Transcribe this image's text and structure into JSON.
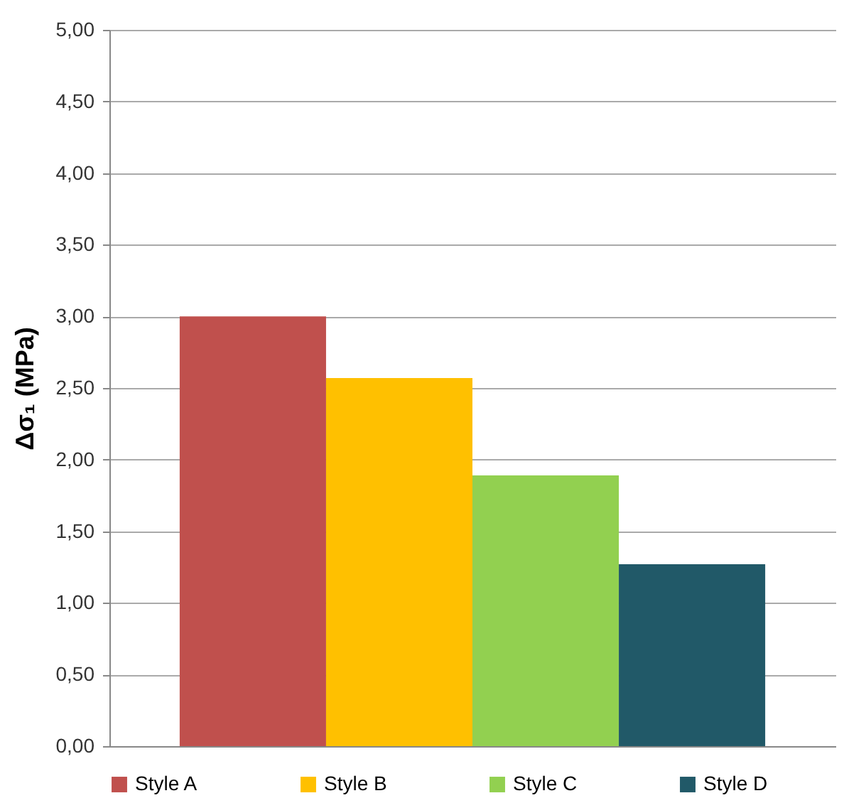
{
  "chart_data": {
    "type": "bar",
    "ylabel": "Δσ₁ (MPa)",
    "categories": [
      null
    ],
    "series": [
      {
        "name": "Style A",
        "color": "#c0504d",
        "values": [
          3.0
        ]
      },
      {
        "name": "Style B",
        "color": "#ffc000",
        "values": [
          2.57
        ]
      },
      {
        "name": "Style C",
        "color": "#92d050",
        "values": [
          1.89
        ]
      },
      {
        "name": "Style D",
        "color": "#215968",
        "values": [
          1.27
        ]
      }
    ],
    "ylim": [
      0,
      5
    ],
    "yticks": [
      {
        "value": 0,
        "label": "0,00"
      },
      {
        "value": 0.5,
        "label": "0,50"
      },
      {
        "value": 1,
        "label": "1,00"
      },
      {
        "value": 1.5,
        "label": "1,50"
      },
      {
        "value": 2,
        "label": "2,00"
      },
      {
        "value": 2.5,
        "label": "2,50"
      },
      {
        "value": 3,
        "label": "3,00"
      },
      {
        "value": 3.5,
        "label": "3,50"
      },
      {
        "value": 4,
        "label": "4,00"
      },
      {
        "value": 4.5,
        "label": "4,50"
      },
      {
        "value": 5,
        "label": "5,00"
      }
    ],
    "grid": "y",
    "legend": "bottom"
  }
}
